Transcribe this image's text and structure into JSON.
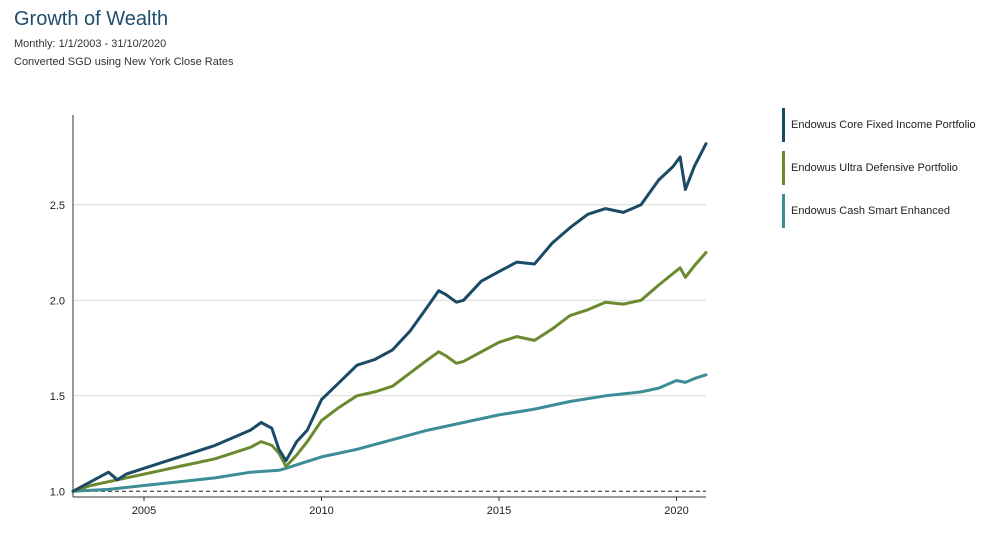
{
  "header": {
    "title": "Growth of Wealth",
    "subtitle": "Monthly: 1/1/2003 - 31/10/2020",
    "note": "Converted SGD using New York Close Rates"
  },
  "colors": {
    "title": "#1f4e6d",
    "core": "#1b4a66",
    "ultra": "#6b8a2f",
    "cash": "#3c8d96",
    "grid": "#d9d9d9",
    "axis": "#333333"
  },
  "chart_data": {
    "type": "line",
    "title": "Growth of Wealth",
    "xlabel": "",
    "ylabel": "",
    "xlim": [
      2003.0,
      2020.83
    ],
    "ylim": [
      0.97,
      2.97
    ],
    "x_ticks": [
      2005,
      2010,
      2015,
      2020
    ],
    "x_tick_labels": [
      "2005",
      "2010",
      "2015",
      "2020"
    ],
    "y_ticks": [
      1.0,
      1.5,
      2.0,
      2.5
    ],
    "y_tick_labels": [
      "1.0",
      "1.5",
      "2.0",
      "2.5"
    ],
    "grid": "horizontal",
    "baseline": 1.0,
    "legend_position": "right",
    "series": [
      {
        "name": "Endowus Core Fixed Income Portfolio",
        "color": "#1b4a66",
        "x": [
          2003.0,
          2003.5,
          2004.0,
          2004.25,
          2004.5,
          2005.0,
          2005.5,
          2006.0,
          2006.5,
          2007.0,
          2007.5,
          2008.0,
          2008.3,
          2008.6,
          2008.8,
          2009.0,
          2009.3,
          2009.6,
          2010.0,
          2010.5,
          2011.0,
          2011.5,
          2012.0,
          2012.5,
          2013.0,
          2013.3,
          2013.5,
          2013.8,
          2014.0,
          2014.5,
          2015.0,
          2015.5,
          2016.0,
          2016.5,
          2017.0,
          2017.5,
          2018.0,
          2018.5,
          2019.0,
          2019.5,
          2019.9,
          2020.1,
          2020.25,
          2020.5,
          2020.83
        ],
        "values": [
          1.0,
          1.05,
          1.1,
          1.06,
          1.09,
          1.12,
          1.15,
          1.18,
          1.21,
          1.24,
          1.28,
          1.32,
          1.36,
          1.33,
          1.22,
          1.16,
          1.26,
          1.32,
          1.48,
          1.57,
          1.66,
          1.69,
          1.74,
          1.84,
          1.97,
          2.05,
          2.03,
          1.99,
          2.0,
          2.1,
          2.15,
          2.2,
          2.19,
          2.3,
          2.38,
          2.45,
          2.48,
          2.46,
          2.5,
          2.63,
          2.7,
          2.75,
          2.58,
          2.7,
          2.82
        ]
      },
      {
        "name": "Endowus Ultra Defensive Portfolio",
        "color": "#6b8a2f",
        "x": [
          2003.0,
          2003.5,
          2004.0,
          2004.5,
          2005.0,
          2005.5,
          2006.0,
          2006.5,
          2007.0,
          2007.5,
          2008.0,
          2008.3,
          2008.6,
          2008.8,
          2009.0,
          2009.3,
          2009.6,
          2010.0,
          2010.5,
          2011.0,
          2011.5,
          2012.0,
          2012.5,
          2013.0,
          2013.3,
          2013.5,
          2013.8,
          2014.0,
          2014.5,
          2015.0,
          2015.5,
          2016.0,
          2016.5,
          2017.0,
          2017.5,
          2018.0,
          2018.5,
          2019.0,
          2019.5,
          2019.9,
          2020.1,
          2020.25,
          2020.5,
          2020.83
        ],
        "values": [
          1.0,
          1.03,
          1.05,
          1.07,
          1.09,
          1.11,
          1.13,
          1.15,
          1.17,
          1.2,
          1.23,
          1.26,
          1.24,
          1.2,
          1.13,
          1.19,
          1.26,
          1.37,
          1.44,
          1.5,
          1.52,
          1.55,
          1.62,
          1.69,
          1.73,
          1.71,
          1.67,
          1.68,
          1.73,
          1.78,
          1.81,
          1.79,
          1.85,
          1.92,
          1.95,
          1.99,
          1.98,
          2.0,
          2.08,
          2.14,
          2.17,
          2.12,
          2.18,
          2.25
        ]
      },
      {
        "name": "Endowus Cash Smart Enhanced",
        "color": "#3c8d96",
        "x": [
          2003.0,
          2004.0,
          2005.0,
          2006.0,
          2007.0,
          2008.0,
          2008.8,
          2009.0,
          2009.5,
          2010.0,
          2011.0,
          2012.0,
          2013.0,
          2014.0,
          2015.0,
          2016.0,
          2017.0,
          2018.0,
          2019.0,
          2019.5,
          2020.0,
          2020.25,
          2020.5,
          2020.83
        ],
        "values": [
          1.0,
          1.01,
          1.03,
          1.05,
          1.07,
          1.1,
          1.11,
          1.12,
          1.15,
          1.18,
          1.22,
          1.27,
          1.32,
          1.36,
          1.4,
          1.43,
          1.47,
          1.5,
          1.52,
          1.54,
          1.58,
          1.57,
          1.59,
          1.61
        ]
      }
    ]
  }
}
